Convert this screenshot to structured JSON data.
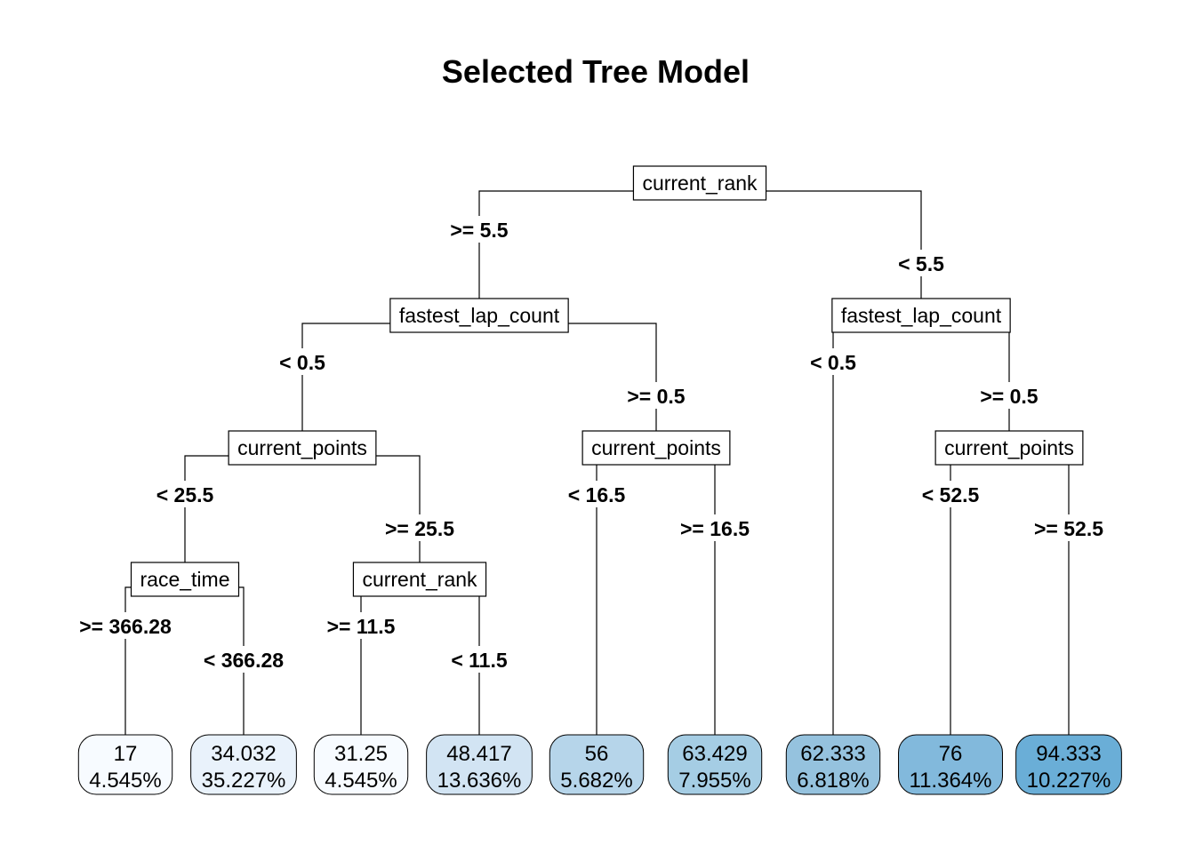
{
  "title": "Selected Tree Model",
  "tree": {
    "splits": [
      {
        "id": "n1",
        "var": "current_rank",
        "left": "n2",
        "right": "n3",
        "left_label": ">= 5.5",
        "right_label": "< 5.5"
      },
      {
        "id": "n2",
        "var": "fastest_lap_count",
        "left": "n4",
        "right": "n5",
        "left_label": "< 0.5",
        "right_label": ">= 0.5"
      },
      {
        "id": "n3",
        "var": "fastest_lap_count",
        "left": "l7",
        "right": "n6",
        "left_label": "< 0.5",
        "right_label": ">= 0.5"
      },
      {
        "id": "n4",
        "var": "current_points",
        "left": "n7",
        "right": "n8",
        "left_label": "< 25.5",
        "right_label": ">= 25.5"
      },
      {
        "id": "n5",
        "var": "current_points",
        "left": "l5",
        "right": "l6",
        "left_label": "< 16.5",
        "right_label": ">= 16.5"
      },
      {
        "id": "n6",
        "var": "current_points",
        "left": "l8",
        "right": "l9",
        "left_label": "< 52.5",
        "right_label": ">= 52.5"
      },
      {
        "id": "n7",
        "var": "race_time",
        "left": "l1",
        "right": "l2",
        "left_label": ">= 366.28",
        "right_label": "< 366.28"
      },
      {
        "id": "n8",
        "var": "current_rank",
        "left": "l3",
        "right": "l4",
        "left_label": ">= 11.5",
        "right_label": "< 11.5"
      }
    ],
    "leaves": [
      {
        "id": "l1",
        "value": "17",
        "pct": "4.545%",
        "color": "#f7fbff"
      },
      {
        "id": "l2",
        "value": "34.032",
        "pct": "35.227%",
        "color": "#e9f2fb"
      },
      {
        "id": "l3",
        "value": "31.25",
        "pct": "4.545%",
        "color": "#f7fbff"
      },
      {
        "id": "l4",
        "value": "48.417",
        "pct": "13.636%",
        "color": "#d2e4f3"
      },
      {
        "id": "l5",
        "value": "56",
        "pct": "5.682%",
        "color": "#b6d5ea"
      },
      {
        "id": "l6",
        "value": "63.429",
        "pct": "7.955%",
        "color": "#a5cde4"
      },
      {
        "id": "l7",
        "value": "62.333",
        "pct": "6.818%",
        "color": "#95c2de"
      },
      {
        "id": "l8",
        "value": "76",
        "pct": "11.364%",
        "color": "#82b9dc"
      },
      {
        "id": "l9",
        "value": "94.333",
        "pct": "10.227%",
        "color": "#6aaed7"
      }
    ]
  }
}
